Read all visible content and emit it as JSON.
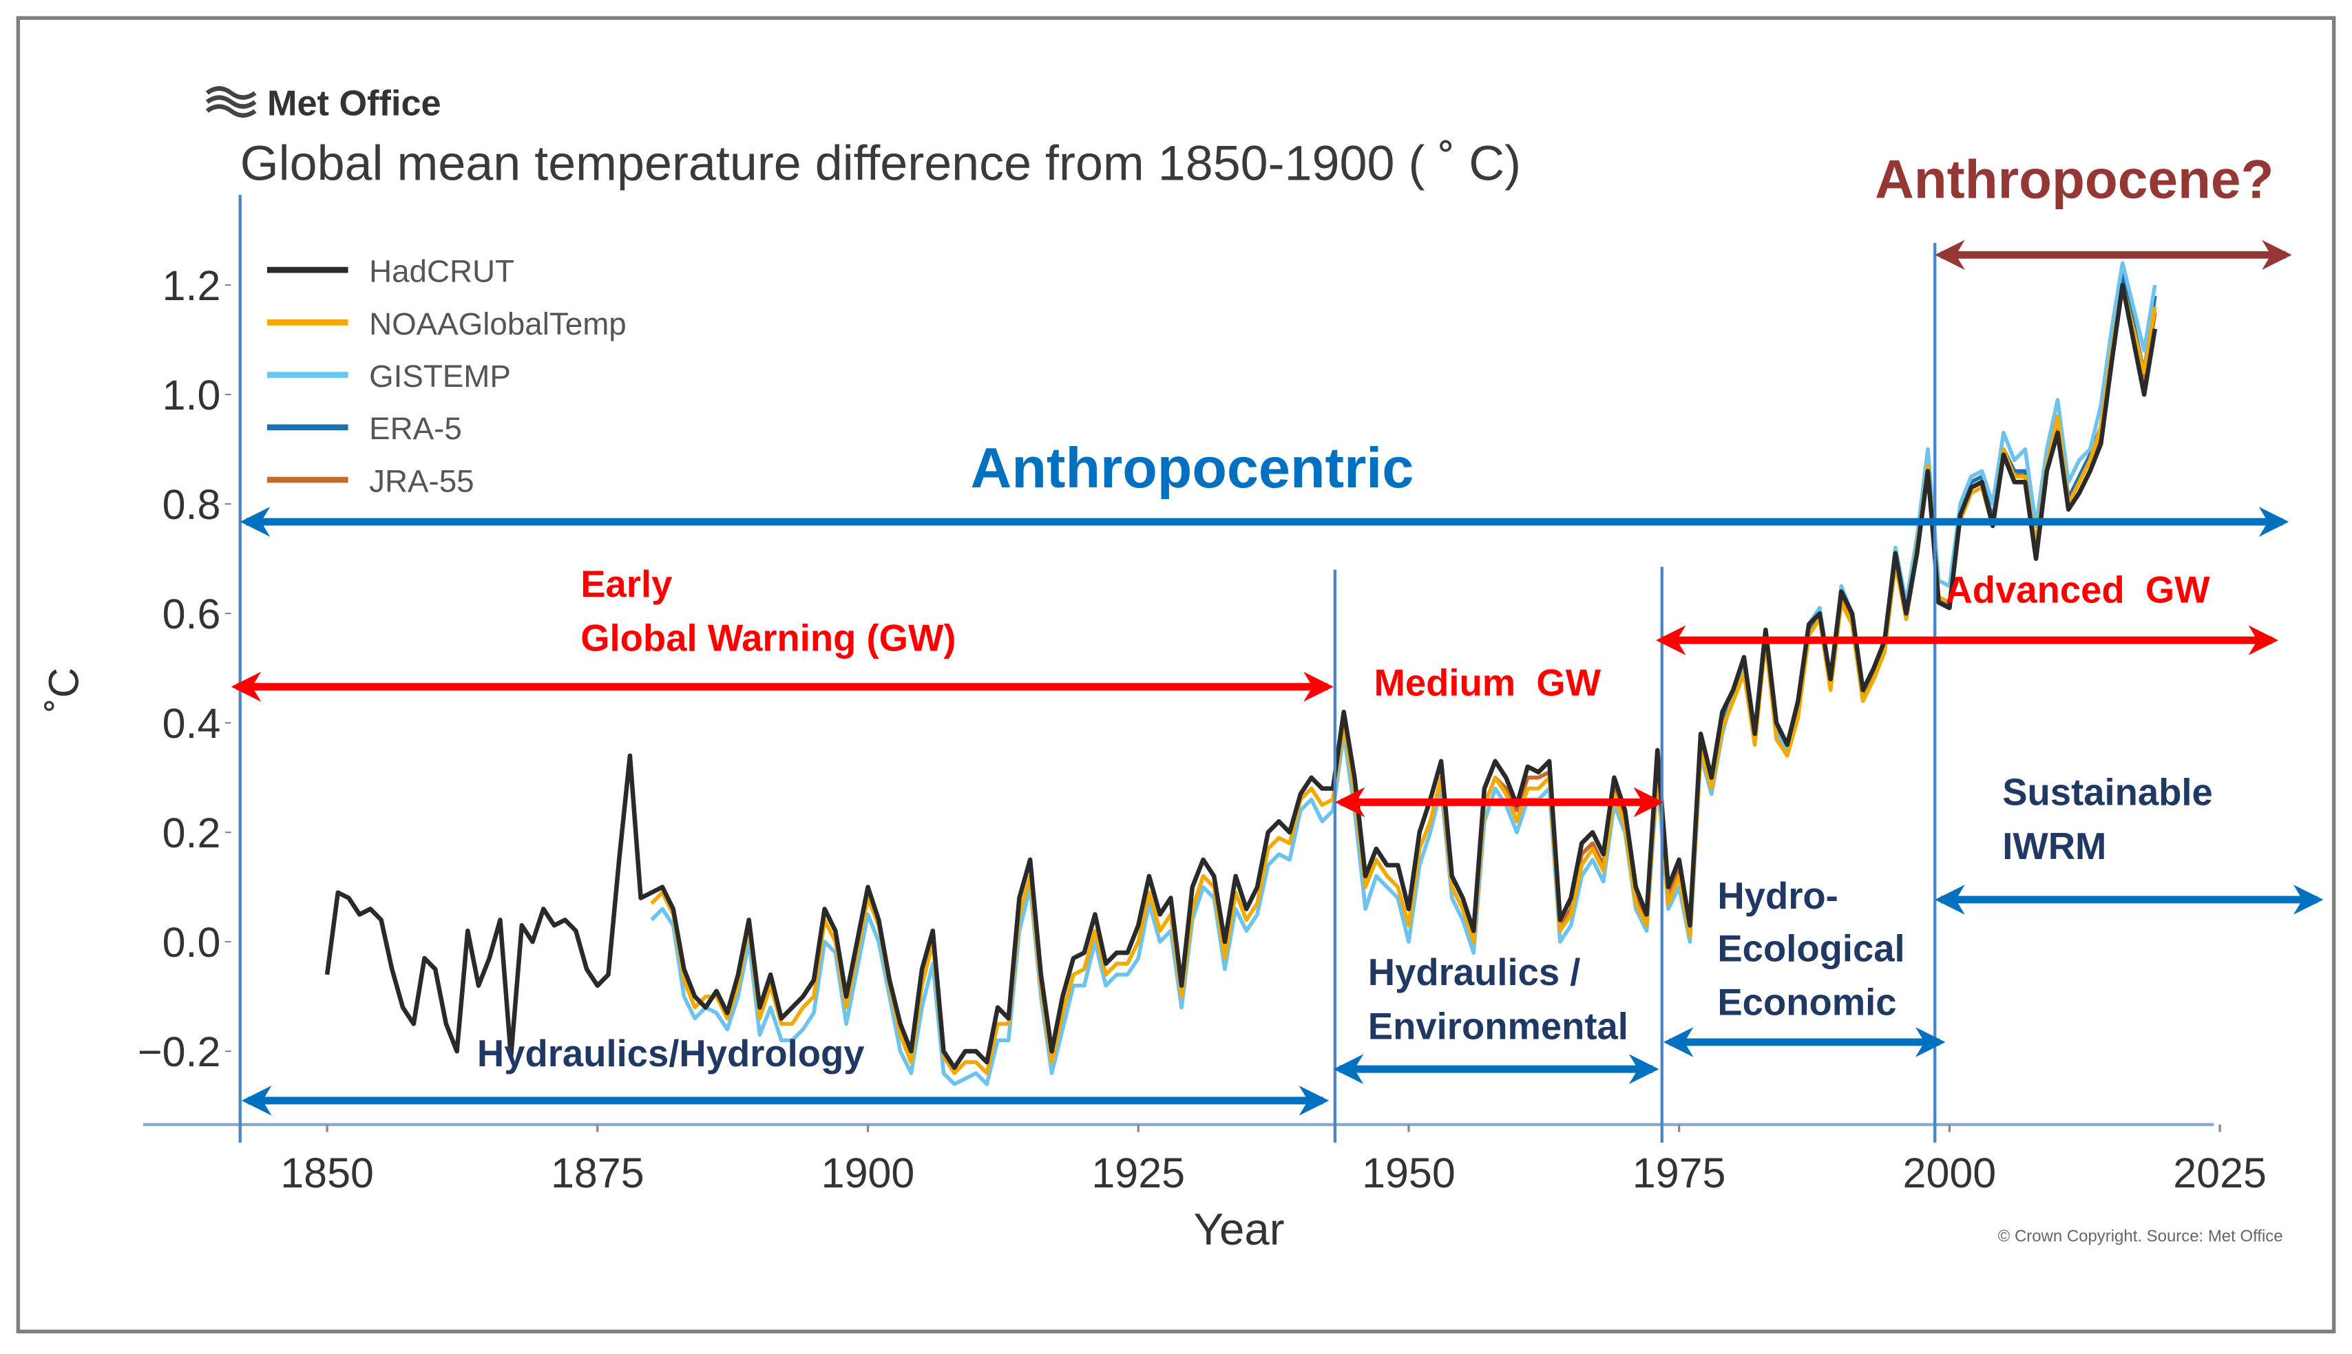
{
  "chart_data": {
    "type": "line",
    "logo": "Met Office",
    "title": "Global mean temperature difference from 1850-1900 ( ˚ C)",
    "xlabel": "Year",
    "ylabel": "˚C",
    "source": "© Crown Copyright. Source: Met Office",
    "annotations": [
      "Anthropocene?",
      "Anthropocentric",
      "Early",
      "Global Warning (GW)",
      "Medium  GW",
      "Advanced  GW",
      "Sustainable",
      "IWRM",
      "Hydro-",
      "Ecological",
      "Economic",
      "Hydraulics /",
      "Environmental",
      "Hydraulics/Hydrology"
    ],
    "legend": "upper left",
    "grid": false,
    "xlim": [
      1833,
      2025
    ],
    "xticks": [
      1850,
      1875,
      1900,
      1925,
      1950,
      1975,
      2000,
      2025
    ],
    "ylim": [
      -0.334,
      1.3
    ],
    "yticks": [
      {
        "value": -0.2,
        "label": "−0.2"
      },
      {
        "value": 0,
        "label": "0.0"
      },
      {
        "value": 0.2,
        "label": "0.2"
      },
      {
        "value": 0.4,
        "label": "0.4"
      },
      {
        "value": 0.6,
        "label": "0.6"
      },
      {
        "value": 0.8,
        "label": "0.8"
      },
      {
        "value": 1.0,
        "label": "1.0"
      },
      {
        "value": 1.2,
        "label": "1.2"
      }
    ],
    "x": [
      1850,
      1851,
      1852,
      1853,
      1854,
      1855,
      1856,
      1857,
      1858,
      1859,
      1860,
      1861,
      1862,
      1863,
      1864,
      1865,
      1866,
      1867,
      1868,
      1869,
      1870,
      1871,
      1872,
      1873,
      1874,
      1875,
      1876,
      1877,
      1878,
      1879,
      1880,
      1881,
      1882,
      1883,
      1884,
      1885,
      1886,
      1887,
      1888,
      1889,
      1890,
      1891,
      1892,
      1893,
      1894,
      1895,
      1896,
      1897,
      1898,
      1899,
      1900,
      1901,
      1902,
      1903,
      1904,
      1905,
      1906,
      1907,
      1908,
      1909,
      1910,
      1911,
      1912,
      1913,
      1914,
      1915,
      1916,
      1917,
      1918,
      1919,
      1920,
      1921,
      1922,
      1923,
      1924,
      1925,
      1926,
      1927,
      1928,
      1929,
      1930,
      1931,
      1932,
      1933,
      1934,
      1935,
      1936,
      1937,
      1938,
      1939,
      1940,
      1941,
      1942,
      1943,
      1944,
      1945,
      1946,
      1947,
      1948,
      1949,
      1950,
      1951,
      1952,
      1953,
      1954,
      1955,
      1956,
      1957,
      1958,
      1959,
      1960,
      1961,
      1962,
      1963,
      1964,
      1965,
      1966,
      1967,
      1968,
      1969,
      1970,
      1971,
      1972,
      1973,
      1974,
      1975,
      1976,
      1977,
      1978,
      1979,
      1980,
      1981,
      1982,
      1983,
      1984,
      1985,
      1986,
      1987,
      1988,
      1989,
      1990,
      1991,
      1992,
      1993,
      1994,
      1995,
      1996,
      1997,
      1998,
      1999,
      2000,
      2001,
      2002,
      2003,
      2004,
      2005,
      2006,
      2007,
      2008,
      2009,
      2010,
      2011,
      2012,
      2013,
      2014,
      2015,
      2016,
      2017,
      2018,
      2019
    ],
    "series": [
      {
        "name": "HadCRUT",
        "color": "#2a2a2a",
        "values": [
          -0.06,
          0.09,
          0.08,
          0.05,
          0.06,
          0.04,
          -0.05,
          -0.12,
          -0.15,
          -0.03,
          -0.05,
          -0.15,
          -0.2,
          0.02,
          -0.08,
          -0.03,
          0.04,
          -0.21,
          0.03,
          0.0,
          0.06,
          0.03,
          0.04,
          0.02,
          -0.05,
          -0.08,
          -0.06,
          0.15,
          0.34,
          0.08,
          0.09,
          0.1,
          0.06,
          -0.05,
          -0.1,
          -0.12,
          -0.09,
          -0.13,
          -0.06,
          0.04,
          -0.12,
          -0.06,
          -0.14,
          -0.12,
          -0.1,
          -0.07,
          0.06,
          0.02,
          -0.1,
          0.0,
          0.1,
          0.04,
          -0.07,
          -0.15,
          -0.2,
          -0.05,
          0.02,
          -0.2,
          -0.23,
          -0.2,
          -0.2,
          -0.22,
          -0.12,
          -0.14,
          0.08,
          0.15,
          -0.06,
          -0.2,
          -0.1,
          -0.03,
          -0.02,
          0.05,
          -0.04,
          -0.02,
          -0.02,
          0.03,
          0.12,
          0.05,
          0.08,
          -0.08,
          0.1,
          0.15,
          0.12,
          0.0,
          0.12,
          0.06,
          0.1,
          0.2,
          0.22,
          0.2,
          0.27,
          0.3,
          0.28,
          0.28,
          0.42,
          0.3,
          0.12,
          0.17,
          0.14,
          0.14,
          0.06,
          0.2,
          0.26,
          0.33,
          0.12,
          0.08,
          0.02,
          0.28,
          0.33,
          0.3,
          0.25,
          0.32,
          0.31,
          0.33,
          0.04,
          0.08,
          0.18,
          0.2,
          0.16,
          0.3,
          0.24,
          0.1,
          0.05,
          0.35,
          0.1,
          0.15,
          0.03,
          0.38,
          0.3,
          0.42,
          0.46,
          0.52,
          0.38,
          0.57,
          0.4,
          0.36,
          0.44,
          0.58,
          0.6,
          0.48,
          0.64,
          0.6,
          0.46,
          0.5,
          0.55,
          0.71,
          0.6,
          0.71,
          0.86,
          0.62,
          0.61,
          0.78,
          0.83,
          0.84,
          0.76,
          0.89,
          0.84,
          0.84,
          0.7,
          0.86,
          0.93,
          0.79,
          0.82,
          0.86,
          0.91,
          1.06,
          1.2,
          1.1,
          1.0,
          1.12
        ]
      },
      {
        "name": "NOAAGlobalTemp",
        "color": "#f2a900",
        "values": [
          null,
          null,
          null,
          null,
          null,
          null,
          null,
          null,
          null,
          null,
          null,
          null,
          null,
          null,
          null,
          null,
          null,
          null,
          null,
          null,
          null,
          null,
          null,
          null,
          null,
          null,
          null,
          null,
          null,
          null,
          0.07,
          0.09,
          0.05,
          -0.07,
          -0.12,
          -0.1,
          -0.1,
          -0.14,
          -0.08,
          0.03,
          -0.14,
          -0.08,
          -0.15,
          -0.15,
          -0.12,
          -0.1,
          0.04,
          0.0,
          -0.12,
          -0.02,
          0.08,
          0.03,
          -0.08,
          -0.17,
          -0.22,
          -0.08,
          0.0,
          -0.21,
          -0.24,
          -0.22,
          -0.22,
          -0.24,
          -0.15,
          -0.15,
          0.05,
          0.12,
          -0.08,
          -0.22,
          -0.13,
          -0.06,
          -0.05,
          0.02,
          -0.06,
          -0.04,
          -0.04,
          0.0,
          0.09,
          0.02,
          0.05,
          -0.1,
          0.06,
          0.12,
          0.1,
          -0.03,
          0.09,
          0.04,
          0.07,
          0.17,
          0.19,
          0.18,
          0.26,
          0.28,
          0.25,
          0.26,
          0.4,
          0.27,
          0.1,
          0.15,
          0.12,
          0.1,
          0.03,
          0.17,
          0.22,
          0.3,
          0.1,
          0.06,
          0.0,
          0.25,
          0.3,
          0.27,
          0.22,
          0.28,
          0.28,
          0.3,
          0.02,
          0.05,
          0.14,
          0.17,
          0.13,
          0.27,
          0.21,
          0.07,
          0.03,
          0.32,
          0.07,
          0.12,
          0.01,
          0.35,
          0.28,
          0.39,
          0.44,
          0.49,
          0.36,
          0.55,
          0.37,
          0.34,
          0.41,
          0.56,
          0.59,
          0.46,
          0.62,
          0.58,
          0.44,
          0.48,
          0.53,
          0.69,
          0.59,
          0.72,
          0.87,
          0.63,
          0.62,
          0.77,
          0.82,
          0.83,
          0.76,
          0.9,
          0.85,
          0.85,
          0.72,
          0.87,
          0.96,
          0.8,
          0.84,
          0.88,
          0.94,
          1.08,
          1.2,
          1.12,
          1.04,
          1.16
        ]
      },
      {
        "name": "GISTEMP",
        "color": "#6cc3f0",
        "values": [
          null,
          null,
          null,
          null,
          null,
          null,
          null,
          null,
          null,
          null,
          null,
          null,
          null,
          null,
          null,
          null,
          null,
          null,
          null,
          null,
          null,
          null,
          null,
          null,
          null,
          null,
          null,
          null,
          null,
          null,
          0.04,
          0.06,
          0.03,
          -0.1,
          -0.14,
          -0.12,
          -0.13,
          -0.16,
          -0.1,
          0.0,
          -0.17,
          -0.12,
          -0.18,
          -0.18,
          -0.16,
          -0.13,
          0.0,
          -0.02,
          -0.15,
          -0.05,
          0.05,
          0.0,
          -0.1,
          -0.2,
          -0.24,
          -0.12,
          -0.04,
          -0.24,
          -0.26,
          -0.25,
          -0.24,
          -0.26,
          -0.18,
          -0.18,
          0.02,
          0.1,
          -0.1,
          -0.24,
          -0.16,
          -0.08,
          -0.08,
          0.0,
          -0.08,
          -0.06,
          -0.06,
          -0.03,
          0.07,
          0.0,
          0.02,
          -0.12,
          0.04,
          0.1,
          0.08,
          -0.05,
          0.06,
          0.02,
          0.05,
          0.14,
          0.16,
          0.15,
          0.24,
          0.26,
          0.22,
          0.24,
          0.38,
          0.24,
          0.06,
          0.12,
          0.1,
          0.08,
          0.0,
          0.14,
          0.2,
          0.28,
          0.08,
          0.04,
          -0.02,
          0.22,
          0.28,
          0.25,
          0.2,
          0.26,
          0.26,
          0.28,
          0.0,
          0.03,
          0.12,
          0.15,
          0.11,
          0.25,
          0.2,
          0.06,
          0.02,
          0.3,
          0.06,
          0.1,
          0.0,
          0.34,
          0.27,
          0.38,
          0.45,
          0.5,
          0.38,
          0.56,
          0.38,
          0.35,
          0.42,
          0.58,
          0.61,
          0.48,
          0.65,
          0.6,
          0.46,
          0.5,
          0.55,
          0.72,
          0.62,
          0.74,
          0.9,
          0.66,
          0.65,
          0.8,
          0.85,
          0.86,
          0.8,
          0.93,
          0.88,
          0.9,
          0.76,
          0.9,
          0.99,
          0.84,
          0.88,
          0.9,
          0.98,
          1.12,
          1.24,
          1.16,
          1.08,
          1.2
        ]
      },
      {
        "name": "ERA-5",
        "color": "#1f6fa8",
        "values": [
          null,
          null,
          null,
          null,
          null,
          null,
          null,
          null,
          null,
          null,
          null,
          null,
          null,
          null,
          null,
          null,
          null,
          null,
          null,
          null,
          null,
          null,
          null,
          null,
          null,
          null,
          null,
          null,
          null,
          null,
          null,
          null,
          null,
          null,
          null,
          null,
          null,
          null,
          null,
          null,
          null,
          null,
          null,
          null,
          null,
          null,
          null,
          null,
          null,
          null,
          null,
          null,
          null,
          null,
          null,
          null,
          null,
          null,
          null,
          null,
          null,
          null,
          null,
          null,
          null,
          null,
          null,
          null,
          null,
          null,
          null,
          null,
          null,
          null,
          null,
          null,
          null,
          null,
          null,
          null,
          null,
          null,
          null,
          null,
          null,
          null,
          null,
          null,
          null,
          null,
          null,
          null,
          null,
          null,
          null,
          null,
          null,
          null,
          null,
          null,
          null,
          null,
          null,
          null,
          null,
          null,
          null,
          null,
          null,
          null,
          null,
          null,
          null,
          null,
          null,
          null,
          null,
          null,
          null,
          null,
          null,
          null,
          null,
          null,
          null,
          null,
          null,
          null,
          null,
          0.41,
          0.45,
          0.5,
          0.37,
          0.55,
          0.38,
          0.35,
          0.42,
          0.56,
          0.6,
          0.47,
          0.62,
          0.58,
          0.44,
          0.48,
          0.53,
          0.7,
          0.59,
          0.71,
          0.87,
          0.62,
          0.62,
          0.78,
          0.84,
          0.85,
          0.77,
          0.9,
          0.86,
          0.86,
          0.72,
          0.88,
          0.95,
          0.81,
          0.85,
          0.89,
          0.94,
          1.09,
          1.23,
          1.13,
          1.04,
          1.18
        ]
      },
      {
        "name": "JRA-55",
        "color": "#c8682a",
        "values": [
          null,
          null,
          null,
          null,
          null,
          null,
          null,
          null,
          null,
          null,
          null,
          null,
          null,
          null,
          null,
          null,
          null,
          null,
          null,
          null,
          null,
          null,
          null,
          null,
          null,
          null,
          null,
          null,
          null,
          null,
          null,
          null,
          null,
          null,
          null,
          null,
          null,
          null,
          null,
          null,
          null,
          null,
          null,
          null,
          null,
          null,
          null,
          null,
          null,
          null,
          null,
          null,
          null,
          null,
          null,
          null,
          null,
          null,
          null,
          null,
          null,
          null,
          null,
          null,
          null,
          null,
          null,
          null,
          null,
          null,
          null,
          null,
          null,
          null,
          null,
          null,
          null,
          null,
          null,
          null,
          null,
          null,
          null,
          null,
          null,
          null,
          null,
          null,
          null,
          null,
          null,
          null,
          null,
          null,
          null,
          null,
          null,
          null,
          null,
          null,
          null,
          null,
          null,
          null,
          null,
          null,
          null,
          null,
          0.3,
          0.28,
          0.24,
          0.3,
          0.3,
          0.31,
          0.03,
          0.06,
          0.16,
          0.18,
          0.14,
          0.28,
          0.22,
          0.08,
          0.04,
          0.34,
          0.08,
          0.13,
          0.02,
          0.36,
          0.29,
          0.4,
          0.45,
          0.5,
          0.37,
          0.56,
          0.39,
          0.35,
          0.43,
          0.57,
          0.6,
          0.47,
          0.63,
          0.59,
          0.45,
          0.49,
          0.54,
          0.7,
          0.6,
          0.72,
          0.86,
          0.63,
          0.62,
          0.78,
          0.83,
          0.84,
          0.77,
          0.9,
          0.85,
          0.86,
          0.72,
          0.87,
          0.95,
          0.8,
          0.84,
          0.88,
          0.93,
          1.08,
          1.22,
          1.12,
          1.02,
          1.15
        ]
      }
    ]
  }
}
